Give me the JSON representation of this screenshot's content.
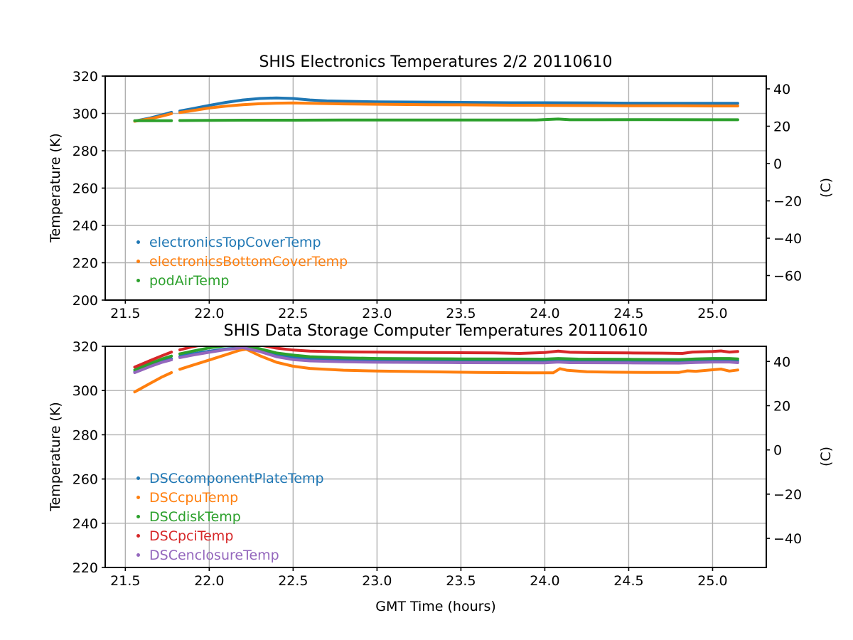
{
  "xlabel": "GMT Time (hours)",
  "colors": {
    "grid": "#b0b0b0",
    "spine": "#000000",
    "background": "#ffffff"
  },
  "chart_data": [
    {
      "type": "line",
      "title": "SHIS Electronics Temperatures 2/2 20110610",
      "ylabel_left": "Temperature (K)",
      "ylabel_right": "(C)",
      "xlabel": "",
      "xlim": [
        21.38,
        25.32
      ],
      "ylim": [
        200,
        320
      ],
      "x_ticks": [
        21.5,
        22.0,
        22.5,
        23.0,
        23.5,
        24.0,
        24.5,
        25.0
      ],
      "y_ticks_left": [
        200,
        220,
        240,
        260,
        280,
        300,
        320
      ],
      "y_ticks_right_celsius": [
        40,
        20,
        0,
        -20,
        -40,
        -60
      ],
      "grid": "on",
      "legend_position": "lower left",
      "note_data_gap_hours": [
        21.775,
        21.825
      ],
      "series": [
        {
          "name": "electronicsTopCoverTemp",
          "color": "#1f77b4",
          "segments": [
            [
              [
                21.556,
                295.9
              ],
              [
                21.65,
                297.6
              ],
              [
                21.72,
                299.2
              ],
              [
                21.775,
                300.6
              ]
            ],
            [
              [
                21.825,
                301.3
              ],
              [
                21.9,
                302.5
              ],
              [
                22.0,
                304.3
              ],
              [
                22.1,
                305.9
              ],
              [
                22.2,
                307.2
              ],
              [
                22.3,
                308.0
              ],
              [
                22.4,
                308.3
              ],
              [
                22.5,
                308.0
              ],
              [
                22.6,
                307.2
              ],
              [
                22.7,
                306.7
              ],
              [
                22.8,
                306.5
              ],
              [
                23.0,
                306.2
              ],
              [
                23.2,
                306.1
              ],
              [
                23.5,
                305.9
              ],
              [
                23.8,
                305.7
              ],
              [
                24.0,
                305.7
              ],
              [
                24.3,
                305.6
              ],
              [
                24.5,
                305.5
              ],
              [
                24.8,
                305.4
              ],
              [
                25.0,
                305.4
              ],
              [
                25.15,
                305.4
              ]
            ]
          ]
        },
        {
          "name": "electronicsBottomCoverTemp",
          "color": "#ff7f0e",
          "segments": [
            [
              [
                21.556,
                295.8
              ],
              [
                21.65,
                297.2
              ],
              [
                21.72,
                298.6
              ],
              [
                21.775,
                299.9
              ]
            ],
            [
              [
                21.825,
                300.5
              ],
              [
                21.9,
                301.5
              ],
              [
                22.0,
                302.9
              ],
              [
                22.1,
                303.9
              ],
              [
                22.2,
                304.7
              ],
              [
                22.3,
                305.2
              ],
              [
                22.4,
                305.5
              ],
              [
                22.5,
                305.6
              ],
              [
                22.6,
                305.4
              ],
              [
                22.8,
                305.1
              ],
              [
                23.0,
                304.9
              ],
              [
                23.3,
                304.7
              ],
              [
                23.5,
                304.6
              ],
              [
                23.8,
                304.4
              ],
              [
                24.0,
                304.3
              ],
              [
                24.3,
                304.2
              ],
              [
                24.5,
                304.1
              ],
              [
                24.8,
                304.1
              ],
              [
                25.0,
                304.0
              ],
              [
                25.15,
                304.0
              ]
            ]
          ]
        },
        {
          "name": "podAirTemp",
          "color": "#2ca02c",
          "segments": [
            [
              [
                21.556,
                296.1
              ],
              [
                21.775,
                296.1
              ]
            ],
            [
              [
                21.825,
                296.2
              ],
              [
                22.2,
                296.4
              ],
              [
                22.5,
                296.4
              ],
              [
                22.8,
                296.5
              ],
              [
                23.0,
                296.5
              ],
              [
                23.5,
                296.5
              ],
              [
                23.95,
                296.5
              ],
              [
                24.03,
                296.8
              ],
              [
                24.08,
                297.0
              ],
              [
                24.15,
                296.6
              ],
              [
                24.3,
                296.6
              ],
              [
                24.6,
                296.7
              ],
              [
                25.0,
                296.6
              ],
              [
                25.15,
                296.6
              ]
            ]
          ]
        }
      ]
    },
    {
      "type": "line",
      "title": "SHIS Data Storage Computer Temperatures 20110610",
      "ylabel_left": "Temperature (K)",
      "ylabel_right": "(C)",
      "xlabel": "GMT Time (hours)",
      "xlim": [
        21.38,
        25.32
      ],
      "ylim": [
        220,
        320
      ],
      "x_ticks": [
        21.5,
        22.0,
        22.5,
        23.0,
        23.5,
        24.0,
        24.5,
        25.0
      ],
      "y_ticks_left": [
        220,
        240,
        260,
        280,
        300,
        320
      ],
      "y_ticks_right_celsius": [
        40,
        20,
        0,
        -20,
        -40
      ],
      "grid": "on",
      "legend_position": "lower left",
      "note_data_gap_hours": [
        21.775,
        21.825
      ],
      "series": [
        {
          "name": "DSCcomponentPlateTemp",
          "color": "#1f77b4",
          "segments": [
            [
              [
                21.556,
                308.4
              ],
              [
                21.65,
                311.2
              ],
              [
                21.72,
                313.2
              ],
              [
                21.775,
                314.4
              ]
            ],
            [
              [
                21.825,
                315.4
              ],
              [
                21.9,
                316.6
              ],
              [
                22.0,
                317.8
              ],
              [
                22.1,
                318.8
              ],
              [
                22.2,
                319.4
              ],
              [
                22.3,
                318.2
              ],
              [
                22.4,
                316.3
              ],
              [
                22.5,
                314.9
              ],
              [
                22.6,
                314.2
              ],
              [
                22.8,
                313.8
              ],
              [
                23.0,
                313.6
              ],
              [
                23.5,
                313.4
              ],
              [
                24.0,
                313.3
              ],
              [
                24.08,
                313.7
              ],
              [
                24.15,
                313.4
              ],
              [
                24.5,
                313.3
              ],
              [
                24.8,
                313.2
              ],
              [
                24.88,
                313.4
              ],
              [
                25.0,
                313.6
              ],
              [
                25.1,
                313.6
              ],
              [
                25.15,
                313.4
              ]
            ]
          ]
        },
        {
          "name": "DSCcpuTemp",
          "color": "#ff7f0e",
          "segments": [
            [
              [
                21.556,
                299.4
              ],
              [
                21.65,
                303.3
              ],
              [
                21.72,
                306.2
              ],
              [
                21.775,
                308.1
              ]
            ],
            [
              [
                21.825,
                309.6
              ],
              [
                21.9,
                311.4
              ],
              [
                22.0,
                313.8
              ],
              [
                22.1,
                316.2
              ],
              [
                22.18,
                318.2
              ],
              [
                22.22,
                318.7
              ],
              [
                22.3,
                315.8
              ],
              [
                22.4,
                312.8
              ],
              [
                22.5,
                311.0
              ],
              [
                22.6,
                310.0
              ],
              [
                22.8,
                309.2
              ],
              [
                23.0,
                308.8
              ],
              [
                23.3,
                308.5
              ],
              [
                23.6,
                308.2
              ],
              [
                23.9,
                308.0
              ],
              [
                24.05,
                308.0
              ],
              [
                24.09,
                309.9
              ],
              [
                24.13,
                309.2
              ],
              [
                24.25,
                308.5
              ],
              [
                24.4,
                308.3
              ],
              [
                24.6,
                308.2
              ],
              [
                24.8,
                308.2
              ],
              [
                24.85,
                308.9
              ],
              [
                24.9,
                308.7
              ],
              [
                25.0,
                309.4
              ],
              [
                25.05,
                309.7
              ],
              [
                25.1,
                308.8
              ],
              [
                25.15,
                309.3
              ]
            ]
          ]
        },
        {
          "name": "DSCdiskTemp",
          "color": "#2ca02c",
          "segments": [
            [
              [
                21.556,
                309.3
              ],
              [
                21.65,
                312.3
              ],
              [
                21.72,
                314.3
              ],
              [
                21.775,
                315.6
              ]
            ],
            [
              [
                21.825,
                316.6
              ],
              [
                21.9,
                317.8
              ],
              [
                22.0,
                319.3
              ],
              [
                22.1,
                320.3
              ],
              [
                22.2,
                320.3
              ],
              [
                22.3,
                318.9
              ],
              [
                22.4,
                317.0
              ],
              [
                22.5,
                316.0
              ],
              [
                22.6,
                315.3
              ],
              [
                22.8,
                314.8
              ],
              [
                23.0,
                314.5
              ],
              [
                23.5,
                314.3
              ],
              [
                24.0,
                314.2
              ],
              [
                24.08,
                314.5
              ],
              [
                24.2,
                314.2
              ],
              [
                24.5,
                314.1
              ],
              [
                24.8,
                314.0
              ],
              [
                24.9,
                314.3
              ],
              [
                25.0,
                314.5
              ],
              [
                25.1,
                314.5
              ],
              [
                25.15,
                314.3
              ]
            ]
          ]
        },
        {
          "name": "DSCpciTemp",
          "color": "#d62728",
          "segments": [
            [
              [
                21.556,
                310.6
              ],
              [
                21.65,
                313.6
              ],
              [
                21.72,
                315.8
              ],
              [
                21.775,
                317.4
              ]
            ],
            [
              [
                21.825,
                318.4
              ],
              [
                21.9,
                319.8
              ],
              [
                22.0,
                321.3
              ],
              [
                22.2,
                321.8
              ],
              [
                22.3,
                320.6
              ],
              [
                22.4,
                319.2
              ],
              [
                22.5,
                318.3
              ],
              [
                22.6,
                317.8
              ],
              [
                22.8,
                317.5
              ],
              [
                23.0,
                317.4
              ],
              [
                23.3,
                317.2
              ],
              [
                23.5,
                317.1
              ],
              [
                23.7,
                317.0
              ],
              [
                23.85,
                316.8
              ],
              [
                24.0,
                317.2
              ],
              [
                24.08,
                317.8
              ],
              [
                24.15,
                317.3
              ],
              [
                24.3,
                317.1
              ],
              [
                24.5,
                317.0
              ],
              [
                24.7,
                316.9
              ],
              [
                24.82,
                316.8
              ],
              [
                24.88,
                317.4
              ],
              [
                25.0,
                317.7
              ],
              [
                25.05,
                317.9
              ],
              [
                25.1,
                317.4
              ],
              [
                25.15,
                317.7
              ]
            ]
          ]
        },
        {
          "name": "DSCenclosureTemp",
          "color": "#9467bd",
          "segments": [
            [
              [
                21.556,
                308.1
              ],
              [
                21.65,
                310.9
              ],
              [
                21.72,
                312.8
              ],
              [
                21.775,
                313.9
              ]
            ],
            [
              [
                21.825,
                314.9
              ],
              [
                21.9,
                316.0
              ],
              [
                22.0,
                317.3
              ],
              [
                22.1,
                318.5
              ],
              [
                22.2,
                319.4
              ],
              [
                22.3,
                317.7
              ],
              [
                22.4,
                315.3
              ],
              [
                22.5,
                314.0
              ],
              [
                22.6,
                313.4
              ],
              [
                22.8,
                313.0
              ],
              [
                23.0,
                312.8
              ],
              [
                23.5,
                312.6
              ],
              [
                24.0,
                312.5
              ],
              [
                24.08,
                312.9
              ],
              [
                24.15,
                312.6
              ],
              [
                24.5,
                312.5
              ],
              [
                24.8,
                312.4
              ],
              [
                24.9,
                312.7
              ],
              [
                25.0,
                312.9
              ],
              [
                25.1,
                312.9
              ],
              [
                25.15,
                312.6
              ]
            ]
          ]
        }
      ]
    }
  ]
}
